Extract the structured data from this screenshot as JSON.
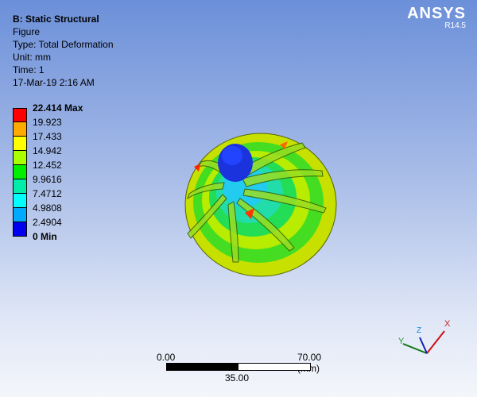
{
  "header": {
    "title": "B: Static Structural",
    "lines": [
      "Figure",
      "Type: Total Deformation",
      "Unit: mm",
      "Time: 1",
      "17-Mar-19 2:16 AM"
    ]
  },
  "brand": {
    "name": "ANSYS",
    "version": "R14.5"
  },
  "legend": {
    "labels": [
      "22.414 Max",
      "19.923",
      "17.433",
      "14.942",
      "12.452",
      "9.9616",
      "7.4712",
      "4.9808",
      "2.4904",
      "0 Min"
    ],
    "colors": [
      "#ff0000",
      "#ffaa00",
      "#ffff00",
      "#aaff00",
      "#00ee00",
      "#00eeaa",
      "#00ffff",
      "#00aaff",
      "#0000ee"
    ]
  },
  "scale_bar": {
    "left": "0.00",
    "right": "70.00 (mm)",
    "mid": "35.00"
  },
  "triad": {
    "x": "X",
    "y": "Y",
    "z": "Z"
  }
}
